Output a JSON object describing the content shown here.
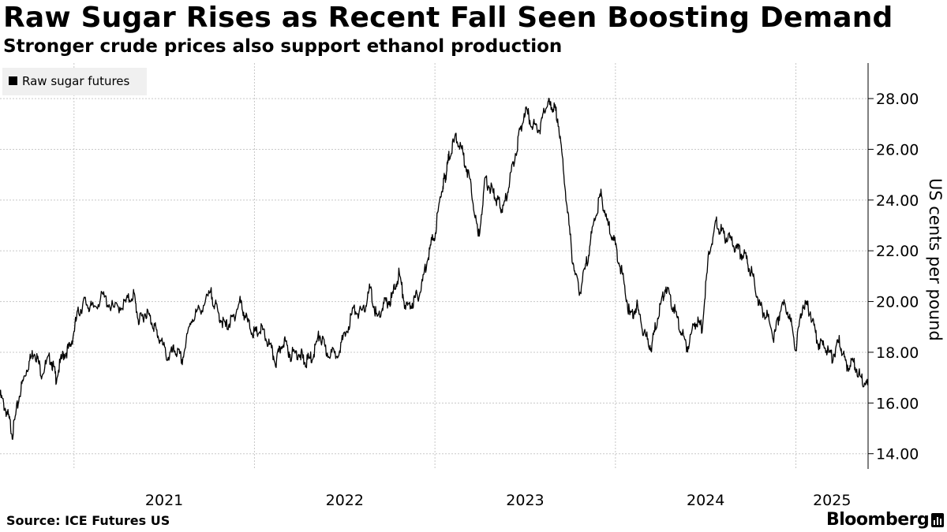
{
  "header": {
    "title": "Raw Sugar Rises as Recent Fall Seen Boosting Demand",
    "subtitle": "Stronger crude prices also support ethanol production"
  },
  "footer": {
    "source": "Source: ICE Futures US",
    "brand": "Bloomberg"
  },
  "colors": {
    "line": "#000000",
    "grid": "#c8c8c8",
    "legend_bg": "#f0f0f0",
    "axis": "#000000"
  },
  "chart_data": {
    "type": "line",
    "title": "Raw Sugar Rises as Recent Fall Seen Boosting Demand",
    "subtitle": "Stronger crude prices also support ethanol production",
    "xlabel": "",
    "ylabel": "US cents per pound",
    "ylim": [
      13.4,
      29.4
    ],
    "xlim": [
      2020.59,
      2025.4
    ],
    "grid": true,
    "legend_position": "top-left",
    "y_ticks": [
      14,
      16,
      18,
      20,
      22,
      24,
      26,
      28
    ],
    "y_tick_labels": [
      "14.00",
      "16.00",
      "18.00",
      "20.00",
      "22.00",
      "24.00",
      "26.00",
      "28.00"
    ],
    "x_ticks": [
      2021,
      2022,
      2023,
      2024,
      2025
    ],
    "x_tick_labels": [
      "2021",
      "2022",
      "2023",
      "2024",
      "2025"
    ],
    "series": [
      {
        "name": "Raw sugar futures",
        "x": [
          2020.59,
          2020.63,
          2020.66,
          2020.7,
          2020.74,
          2020.78,
          2020.82,
          2020.87,
          2020.9,
          2020.94,
          2020.98,
          2021.02,
          2021.06,
          2021.1,
          2021.16,
          2021.22,
          2021.28,
          2021.33,
          2021.36,
          2021.4,
          2021.44,
          2021.47,
          2021.52,
          2021.56,
          2021.6,
          2021.65,
          2021.7,
          2021.76,
          2021.8,
          2021.84,
          2021.88,
          2021.92,
          2021.96,
          2022.0,
          2022.04,
          2022.08,
          2022.12,
          2022.16,
          2022.2,
          2022.25,
          2022.28,
          2022.32,
          2022.36,
          2022.4,
          2022.45,
          2022.5,
          2022.55,
          2022.6,
          2022.64,
          2022.68,
          2022.72,
          2022.76,
          2022.8,
          2022.84,
          2022.88,
          2022.92,
          2022.96,
          2023.0,
          2023.04,
          2023.06,
          2023.08,
          2023.12,
          2023.16,
          2023.2,
          2023.24,
          2023.28,
          2023.32,
          2023.35,
          2023.38,
          2023.42,
          2023.46,
          2023.5,
          2023.54,
          2023.58,
          2023.62,
          2023.65,
          2023.68,
          2023.72,
          2023.76,
          2023.8,
          2023.84,
          2023.88,
          2023.92,
          2023.96,
          2024.0,
          2024.04,
          2024.08,
          2024.12,
          2024.16,
          2024.2,
          2024.24,
          2024.28,
          2024.32,
          2024.36,
          2024.4,
          2024.44,
          2024.48,
          2024.52,
          2024.56,
          2024.6,
          2024.64,
          2024.68,
          2024.72,
          2024.76,
          2024.8,
          2024.84,
          2024.88,
          2024.92,
          2024.96,
          2025.0,
          2025.04,
          2025.08,
          2025.12,
          2025.16,
          2025.2,
          2025.24,
          2025.28,
          2025.32,
          2025.36,
          2025.4
        ],
        "values": [
          16.3,
          15.6,
          14.8,
          16.4,
          17.4,
          18.1,
          17.2,
          17.8,
          17.0,
          17.9,
          18.2,
          19.5,
          20.0,
          19.7,
          20.2,
          19.7,
          19.9,
          20.3,
          19.2,
          19.6,
          19.1,
          18.6,
          17.8,
          18.1,
          17.7,
          19.3,
          19.7,
          20.3,
          19.5,
          19.0,
          19.3,
          20.0,
          19.2,
          18.7,
          18.9,
          18.3,
          17.6,
          18.5,
          17.9,
          18.0,
          17.6,
          17.8,
          18.7,
          18.0,
          17.9,
          18.6,
          19.7,
          19.5,
          20.5,
          19.3,
          19.9,
          20.1,
          21.1,
          19.7,
          20.0,
          20.4,
          21.8,
          22.7,
          24.5,
          25.0,
          25.8,
          26.5,
          25.7,
          24.6,
          22.5,
          24.8,
          24.3,
          23.9,
          23.6,
          25.0,
          26.3,
          27.6,
          27.0,
          26.8,
          27.8,
          27.7,
          27.3,
          24.6,
          21.8,
          20.3,
          21.5,
          23.1,
          24.2,
          23.0,
          22.2,
          21.0,
          19.4,
          19.8,
          18.7,
          18.2,
          19.6,
          20.6,
          19.8,
          18.9,
          18.2,
          19.2,
          19.0,
          22.0,
          23.1,
          22.6,
          22.4,
          22.0,
          21.8,
          21.0,
          19.8,
          19.4,
          18.6,
          19.9,
          19.6,
          18.2,
          20.0,
          19.6,
          18.4,
          18.2,
          17.8,
          18.4,
          17.5,
          17.6,
          17.0,
          16.7
        ]
      }
    ]
  }
}
